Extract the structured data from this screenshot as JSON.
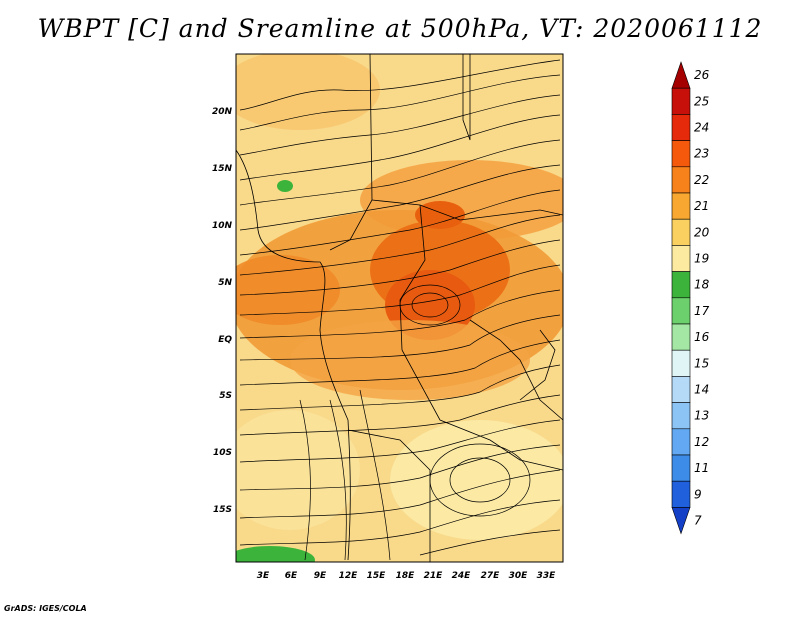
{
  "title": "WBPT [C] and Sreamline at 500hPa, VT: 2020061112",
  "credit": "GrADS: IGES/COLA",
  "lat_labels": [
    "20N",
    "15N",
    "10N",
    "5N",
    "EQ",
    "5S",
    "10S",
    "15S"
  ],
  "lon_labels": [
    "3E",
    "6E",
    "9E",
    "12E",
    "15E",
    "18E",
    "21E",
    "24E",
    "27E",
    "30E",
    "33E"
  ],
  "colorbar": {
    "labels": [
      "26",
      "25",
      "24",
      "23",
      "22",
      "21",
      "20",
      "19",
      "18",
      "17",
      "16",
      "15",
      "14",
      "13",
      "12",
      "11",
      "9",
      "7"
    ],
    "colors": [
      "#a50000",
      "#c8100a",
      "#e42a0a",
      "#f55a0c",
      "#f7811a",
      "#f8a830",
      "#fad060",
      "#fbeaa0",
      "#3cb43c",
      "#6cd06c",
      "#a4e6a4",
      "#e0f6f6",
      "#b4daf8",
      "#8cc4f6",
      "#62a8f2",
      "#3c8ce8",
      "#2060dc",
      "#1440c8"
    ]
  }
}
